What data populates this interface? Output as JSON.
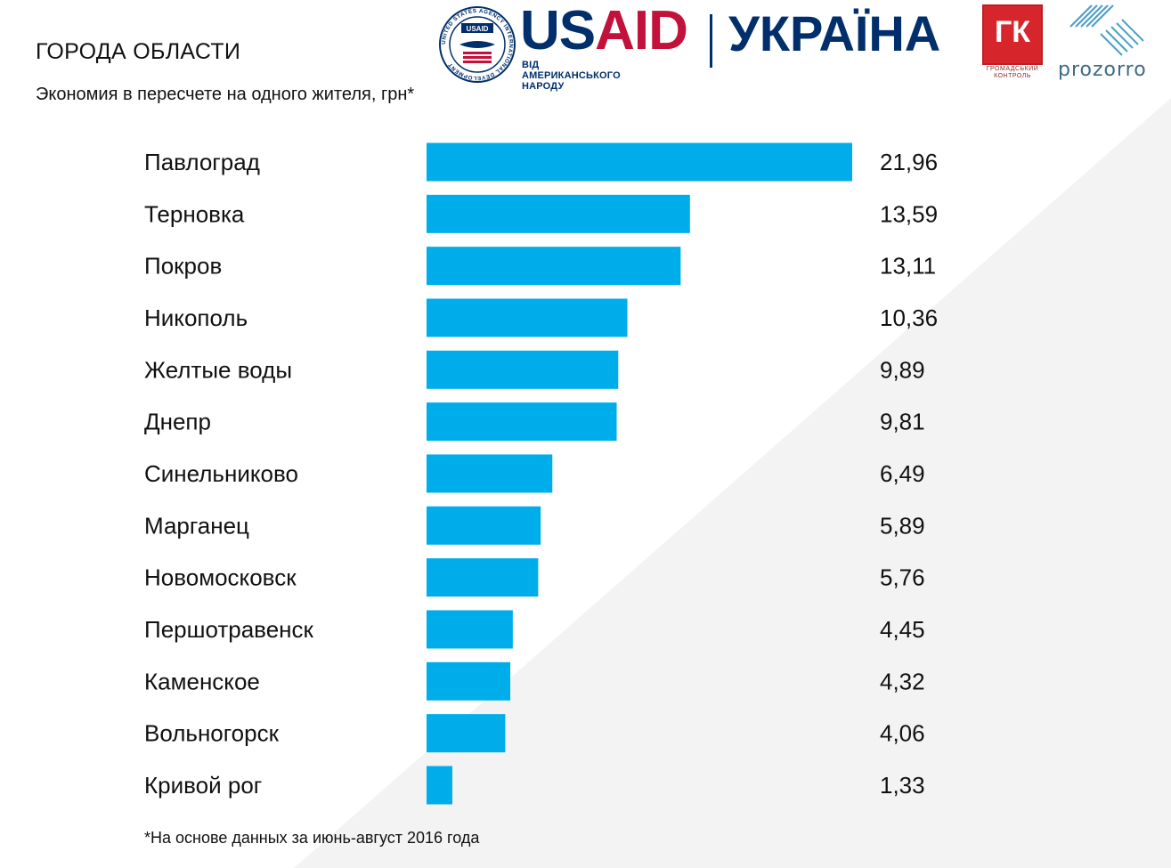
{
  "header": {
    "title": "ГОРОДА ОБЛАСТИ",
    "subtitle": "Экономия в пересчете на одного жителя, грн*"
  },
  "logos": {
    "usaid_word_a": "US",
    "usaid_word_b": "AID",
    "usaid_tagline": "ВІД АМЕРИКАНСЬКОГО НАРОДУ",
    "ukraina_word": "УКРАЇНА",
    "gk_text": "ГК",
    "gk_caption_1": "ГРОМАДСЬКИЙ",
    "gk_caption_2": "КОНТРОЛЬ",
    "prozorro_word": "prozorro",
    "seal_ring_text": "UNITED STATES AGENCY INTERNATIONAL DEVELOPMENT",
    "seal_center_text": "USAID"
  },
  "colors": {
    "bar": "#00adeb",
    "background_wedge": "#f2f2f2",
    "usaid_blue": "#002f6c",
    "usaid_red": "#c2113a",
    "gk_red": "#d7262b",
    "prozorro_teal": "#3d6c87"
  },
  "chart_data": {
    "type": "bar",
    "orientation": "horizontal",
    "categories": [
      "Павлоград",
      "Терновка",
      "Покров",
      "Никополь",
      "Желтые воды",
      "Днепр",
      "Синельниково",
      "Марганец",
      "Новомосковск",
      "Першотравенск",
      "Каменское",
      "Вольногорск",
      "Кривой рог"
    ],
    "values": [
      21.96,
      13.59,
      13.11,
      10.36,
      9.89,
      9.81,
      6.49,
      5.89,
      5.76,
      4.45,
      4.32,
      4.06,
      1.33
    ],
    "value_labels": [
      "21,96",
      "13,59",
      "13,11",
      "10,36",
      "9,89",
      "9,81",
      "6,49",
      "5,89",
      "5,76",
      "4,45",
      "4,32",
      "4,06",
      "1,33"
    ],
    "xlim": [
      0,
      21.96
    ],
    "grid": false,
    "legend": "none"
  },
  "footnote": "*На основе данных за июнь-август 2016 года"
}
